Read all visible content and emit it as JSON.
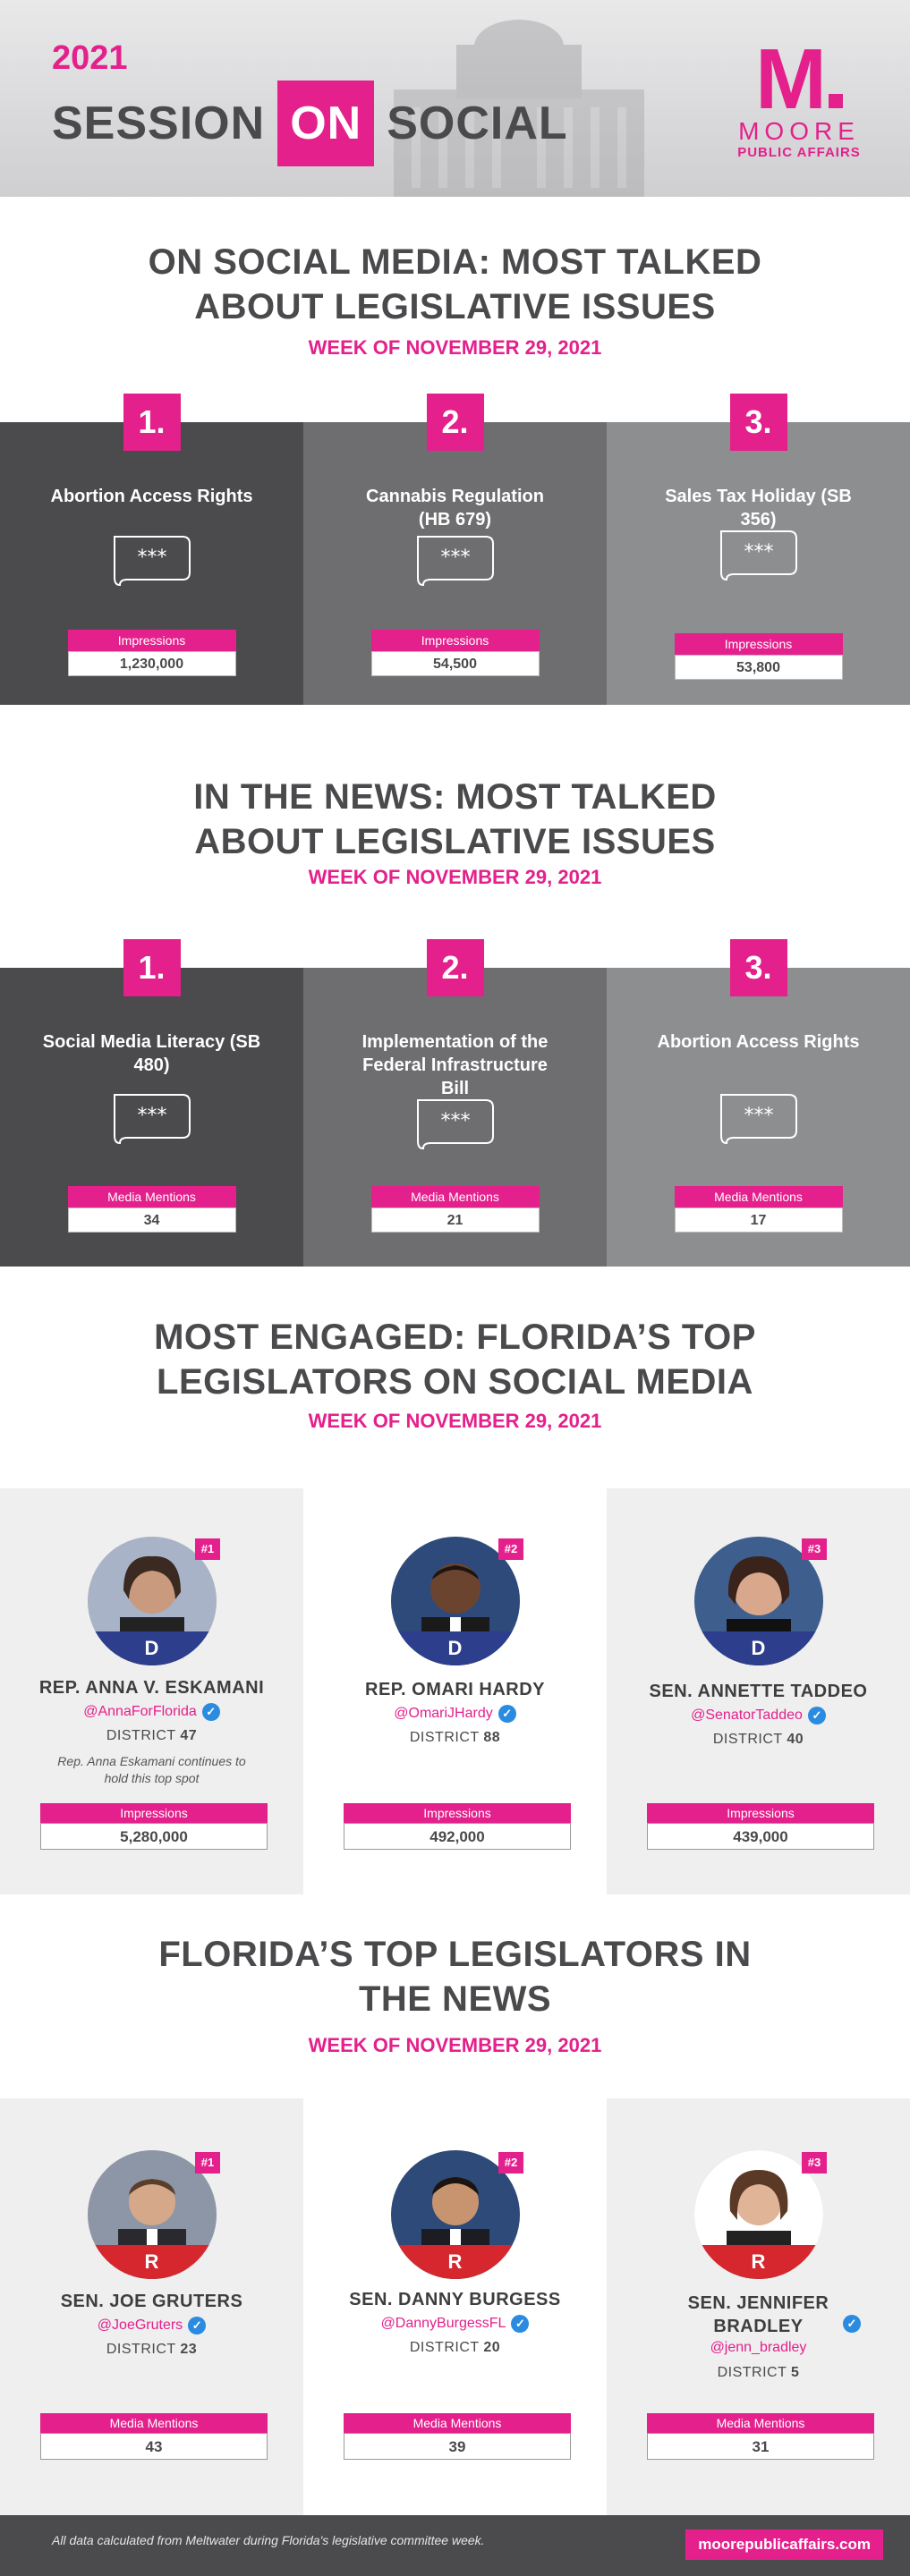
{
  "header": {
    "year": "2021",
    "title_left": "SESSION",
    "title_on": "ON",
    "title_right": "SOCIAL",
    "logo_m": "M",
    "logo_moore": "MOORE",
    "logo_pa": "PUBLIC AFFAIRS"
  },
  "social": {
    "title_line1": "ON SOCIAL MEDIA: MOST TALKED",
    "title_line2": "ABOUT LEGISLATIVE ISSUES",
    "week": "WEEK OF NOVEMBER 29, 2021",
    "items": [
      {
        "rank": "1.",
        "name": "Abortion Access Rights",
        "stat_label": "Impressions",
        "stat_value": "1,230,000"
      },
      {
        "rank": "2.",
        "name": "Cannabis Regulation (HB 679)",
        "stat_label": "Impressions",
        "stat_value": "54,500"
      },
      {
        "rank": "3.",
        "name": "Sales Tax Holiday (SB 356)",
        "stat_label": "Impressions",
        "stat_value": "53,800"
      }
    ]
  },
  "news": {
    "title_line1": "IN THE NEWS: MOST TALKED",
    "title_line2": "ABOUT LEGISLATIVE ISSUES",
    "week": "WEEK OF NOVEMBER 29, 2021",
    "items": [
      {
        "rank": "1.",
        "name": "Social Media Literacy (SB 480)",
        "stat_label": "Media Mentions",
        "stat_value": "34"
      },
      {
        "rank": "2.",
        "name": "Implementation of the Federal Infrastructure Bill",
        "stat_label": "Media Mentions",
        "stat_value": "21"
      },
      {
        "rank": "3.",
        "name": "Abortion Access Rights",
        "stat_label": "Media Mentions",
        "stat_value": "17"
      }
    ]
  },
  "engaged": {
    "title_line1": "MOST ENGAGED: FLORIDA’S TOP",
    "title_line2": "LEGISLATORS ON SOCIAL MEDIA",
    "week": "WEEK OF NOVEMBER 29, 2021",
    "items": [
      {
        "rank": "#1",
        "party": "D",
        "name": "REP. ANNA V. ESKAMANI",
        "handle": "@AnnaForFlorida",
        "district_label": "DISTRICT",
        "district": "47",
        "note": "Rep. Anna Eskamani continues to hold this top spot",
        "stat_label": "Impressions",
        "stat_value": "5,280,000"
      },
      {
        "rank": "#2",
        "party": "D",
        "name": "REP. OMARI HARDY",
        "handle": "@OmariJHardy",
        "district_label": "DISTRICT",
        "district": "88",
        "stat_label": "Impressions",
        "stat_value": "492,000"
      },
      {
        "rank": "#3",
        "party": "D",
        "name": "SEN. ANNETTE TADDEO",
        "handle": "@SenatorTaddeo",
        "district_label": "DISTRICT",
        "district": "40",
        "stat_label": "Impressions",
        "stat_value": "439,000"
      }
    ]
  },
  "topnews": {
    "title_line1": "FLORIDA’S TOP LEGISLATORS IN",
    "title_line2": "THE NEWS",
    "week": "WEEK OF NOVEMBER 29, 2021",
    "items": [
      {
        "rank": "#1",
        "party": "R",
        "name": "SEN. JOE GRUTERS",
        "handle": "@JoeGruters",
        "district_label": "DISTRICT",
        "district": "23",
        "stat_label": "Media Mentions",
        "stat_value": "43"
      },
      {
        "rank": "#2",
        "party": "R",
        "name": "SEN. DANNY BURGESS",
        "handle": "@DannyBurgessFL",
        "district_label": "DISTRICT",
        "district": "20",
        "stat_label": "Media Mentions",
        "stat_value": "39"
      },
      {
        "rank": "#3",
        "party": "R",
        "name": "SEN. JENNIFER BRADLEY",
        "handle": "@jenn_bradley",
        "district_label": "DISTRICT",
        "district": "5",
        "stat_label": "Media Mentions",
        "stat_value": "31"
      }
    ]
  },
  "footer": {
    "note": "All data calculated from Meltwater during Florida's legislative committee week.",
    "url": "moorepublicaffairs.com"
  },
  "colors": {
    "accent": "#e4208c",
    "dark": "#4b4a4c",
    "democrat": "#2c3e8c",
    "republican": "#d6272f"
  }
}
